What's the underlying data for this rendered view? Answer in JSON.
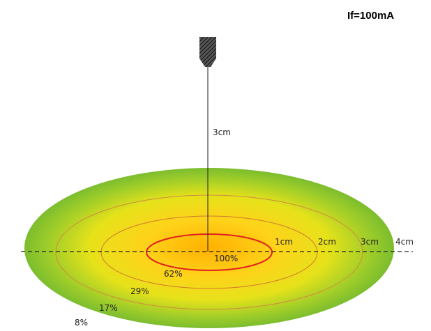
{
  "header": {
    "condition": "If=100mA"
  },
  "source": {
    "distance_label": "3cm"
  },
  "radius_labels": [
    "1cm",
    "2cm",
    "3cm",
    "4cm"
  ],
  "intensity_labels": [
    "100%",
    "62%",
    "29%",
    "17%",
    "8%"
  ]
}
